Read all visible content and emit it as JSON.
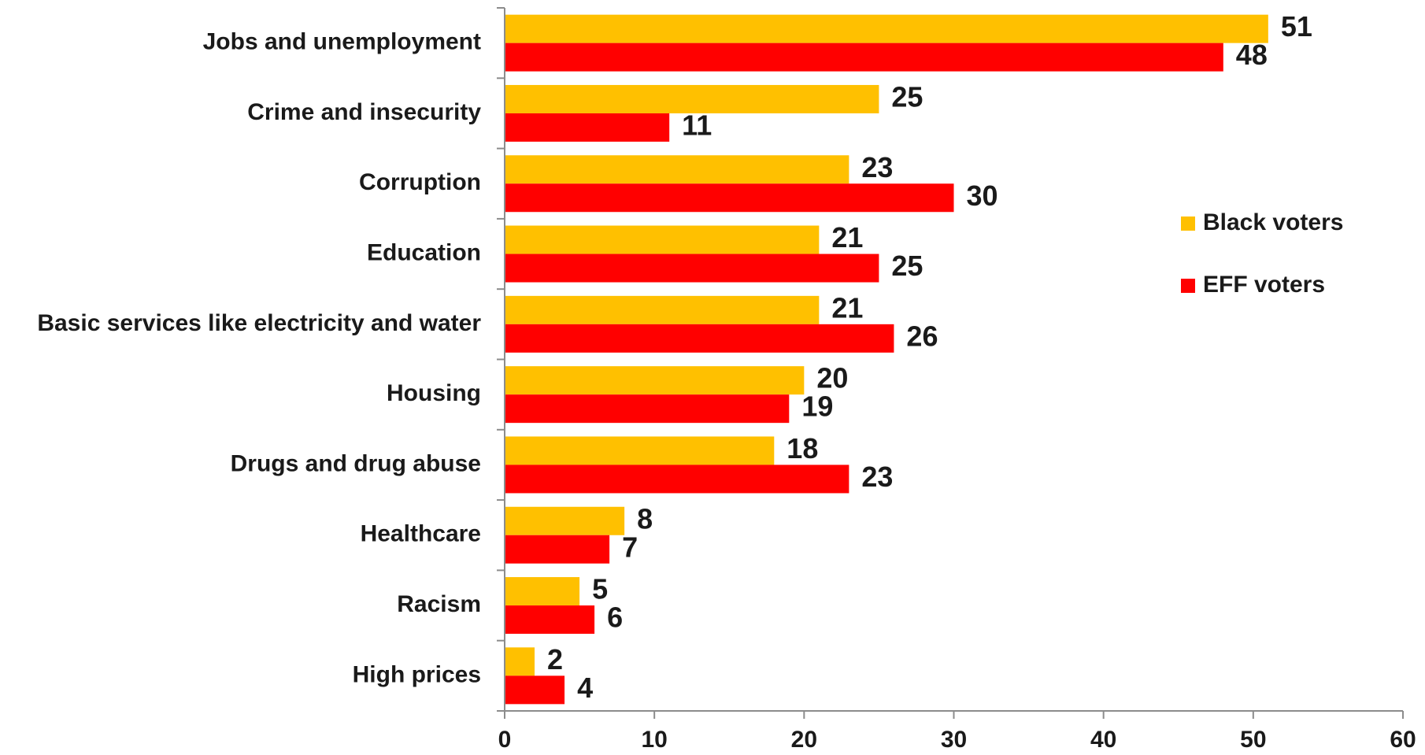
{
  "chart_data": {
    "type": "bar",
    "orientation": "horizontal",
    "categories": [
      "Jobs and unemployment",
      "Crime and insecurity",
      "Corruption",
      "Education",
      "Basic services like electricity and water",
      "Housing",
      "Drugs and drug abuse",
      "Healthcare",
      "Racism",
      "High prices"
    ],
    "series": [
      {
        "name": "Black voters",
        "color": "#FFC000",
        "values": [
          51,
          25,
          23,
          21,
          21,
          20,
          18,
          8,
          5,
          2
        ]
      },
      {
        "name": "EFF voters",
        "color": "#FF0000",
        "values": [
          48,
          11,
          30,
          25,
          26,
          19,
          23,
          7,
          6,
          4
        ]
      }
    ],
    "xlim": [
      0,
      60
    ],
    "xticks": [
      0,
      10,
      20,
      30,
      40,
      50,
      60
    ],
    "grid": false,
    "legend_position": "right",
    "data_labels": true,
    "title": "",
    "xlabel": "",
    "ylabel": ""
  }
}
